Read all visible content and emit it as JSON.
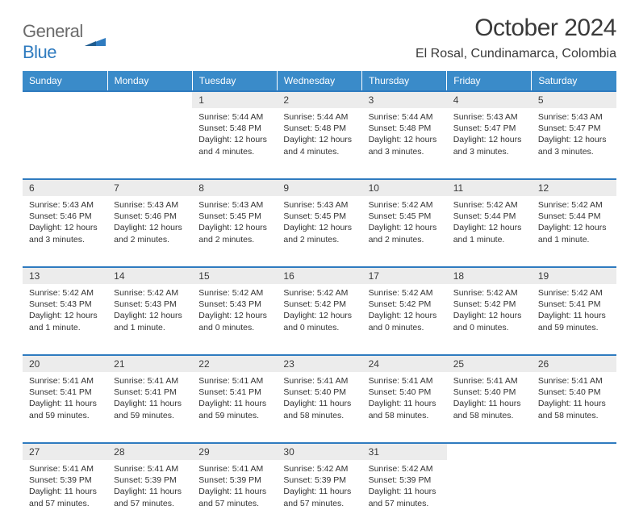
{
  "brand": {
    "part1": "General",
    "part2": "Blue"
  },
  "title": "October 2024",
  "location": "El Rosal, Cundinamarca, Colombia",
  "colors": {
    "header_bg": "#3a8bc9",
    "header_text": "#ffffff",
    "daynum_bg": "#ececec",
    "row_border": "#2f7bbf",
    "body_text": "#333333",
    "logo_gray": "#6b6b6b",
    "logo_blue": "#2f7bbf"
  },
  "typography": {
    "title_fontsize": 30,
    "location_fontsize": 16,
    "weekday_fontsize": 12,
    "daynum_fontsize": 12,
    "cell_fontsize": 10.5
  },
  "weekdays": [
    "Sunday",
    "Monday",
    "Tuesday",
    "Wednesday",
    "Thursday",
    "Friday",
    "Saturday"
  ],
  "weeks": [
    [
      null,
      null,
      {
        "n": "1",
        "sunrise": "5:44 AM",
        "sunset": "5:48 PM",
        "daylight": "12 hours and 4 minutes."
      },
      {
        "n": "2",
        "sunrise": "5:44 AM",
        "sunset": "5:48 PM",
        "daylight": "12 hours and 4 minutes."
      },
      {
        "n": "3",
        "sunrise": "5:44 AM",
        "sunset": "5:48 PM",
        "daylight": "12 hours and 3 minutes."
      },
      {
        "n": "4",
        "sunrise": "5:43 AM",
        "sunset": "5:47 PM",
        "daylight": "12 hours and 3 minutes."
      },
      {
        "n": "5",
        "sunrise": "5:43 AM",
        "sunset": "5:47 PM",
        "daylight": "12 hours and 3 minutes."
      }
    ],
    [
      {
        "n": "6",
        "sunrise": "5:43 AM",
        "sunset": "5:46 PM",
        "daylight": "12 hours and 3 minutes."
      },
      {
        "n": "7",
        "sunrise": "5:43 AM",
        "sunset": "5:46 PM",
        "daylight": "12 hours and 2 minutes."
      },
      {
        "n": "8",
        "sunrise": "5:43 AM",
        "sunset": "5:45 PM",
        "daylight": "12 hours and 2 minutes."
      },
      {
        "n": "9",
        "sunrise": "5:43 AM",
        "sunset": "5:45 PM",
        "daylight": "12 hours and 2 minutes."
      },
      {
        "n": "10",
        "sunrise": "5:42 AM",
        "sunset": "5:45 PM",
        "daylight": "12 hours and 2 minutes."
      },
      {
        "n": "11",
        "sunrise": "5:42 AM",
        "sunset": "5:44 PM",
        "daylight": "12 hours and 1 minute."
      },
      {
        "n": "12",
        "sunrise": "5:42 AM",
        "sunset": "5:44 PM",
        "daylight": "12 hours and 1 minute."
      }
    ],
    [
      {
        "n": "13",
        "sunrise": "5:42 AM",
        "sunset": "5:43 PM",
        "daylight": "12 hours and 1 minute."
      },
      {
        "n": "14",
        "sunrise": "5:42 AM",
        "sunset": "5:43 PM",
        "daylight": "12 hours and 1 minute."
      },
      {
        "n": "15",
        "sunrise": "5:42 AM",
        "sunset": "5:43 PM",
        "daylight": "12 hours and 0 minutes."
      },
      {
        "n": "16",
        "sunrise": "5:42 AM",
        "sunset": "5:42 PM",
        "daylight": "12 hours and 0 minutes."
      },
      {
        "n": "17",
        "sunrise": "5:42 AM",
        "sunset": "5:42 PM",
        "daylight": "12 hours and 0 minutes."
      },
      {
        "n": "18",
        "sunrise": "5:42 AM",
        "sunset": "5:42 PM",
        "daylight": "12 hours and 0 minutes."
      },
      {
        "n": "19",
        "sunrise": "5:42 AM",
        "sunset": "5:41 PM",
        "daylight": "11 hours and 59 minutes."
      }
    ],
    [
      {
        "n": "20",
        "sunrise": "5:41 AM",
        "sunset": "5:41 PM",
        "daylight": "11 hours and 59 minutes."
      },
      {
        "n": "21",
        "sunrise": "5:41 AM",
        "sunset": "5:41 PM",
        "daylight": "11 hours and 59 minutes."
      },
      {
        "n": "22",
        "sunrise": "5:41 AM",
        "sunset": "5:41 PM",
        "daylight": "11 hours and 59 minutes."
      },
      {
        "n": "23",
        "sunrise": "5:41 AM",
        "sunset": "5:40 PM",
        "daylight": "11 hours and 58 minutes."
      },
      {
        "n": "24",
        "sunrise": "5:41 AM",
        "sunset": "5:40 PM",
        "daylight": "11 hours and 58 minutes."
      },
      {
        "n": "25",
        "sunrise": "5:41 AM",
        "sunset": "5:40 PM",
        "daylight": "11 hours and 58 minutes."
      },
      {
        "n": "26",
        "sunrise": "5:41 AM",
        "sunset": "5:40 PM",
        "daylight": "11 hours and 58 minutes."
      }
    ],
    [
      {
        "n": "27",
        "sunrise": "5:41 AM",
        "sunset": "5:39 PM",
        "daylight": "11 hours and 57 minutes."
      },
      {
        "n": "28",
        "sunrise": "5:41 AM",
        "sunset": "5:39 PM",
        "daylight": "11 hours and 57 minutes."
      },
      {
        "n": "29",
        "sunrise": "5:41 AM",
        "sunset": "5:39 PM",
        "daylight": "11 hours and 57 minutes."
      },
      {
        "n": "30",
        "sunrise": "5:42 AM",
        "sunset": "5:39 PM",
        "daylight": "11 hours and 57 minutes."
      },
      {
        "n": "31",
        "sunrise": "5:42 AM",
        "sunset": "5:39 PM",
        "daylight": "11 hours and 57 minutes."
      },
      null,
      null
    ]
  ],
  "labels": {
    "sunrise_prefix": "Sunrise: ",
    "sunset_prefix": "Sunset: ",
    "daylight_prefix": "Daylight: "
  }
}
